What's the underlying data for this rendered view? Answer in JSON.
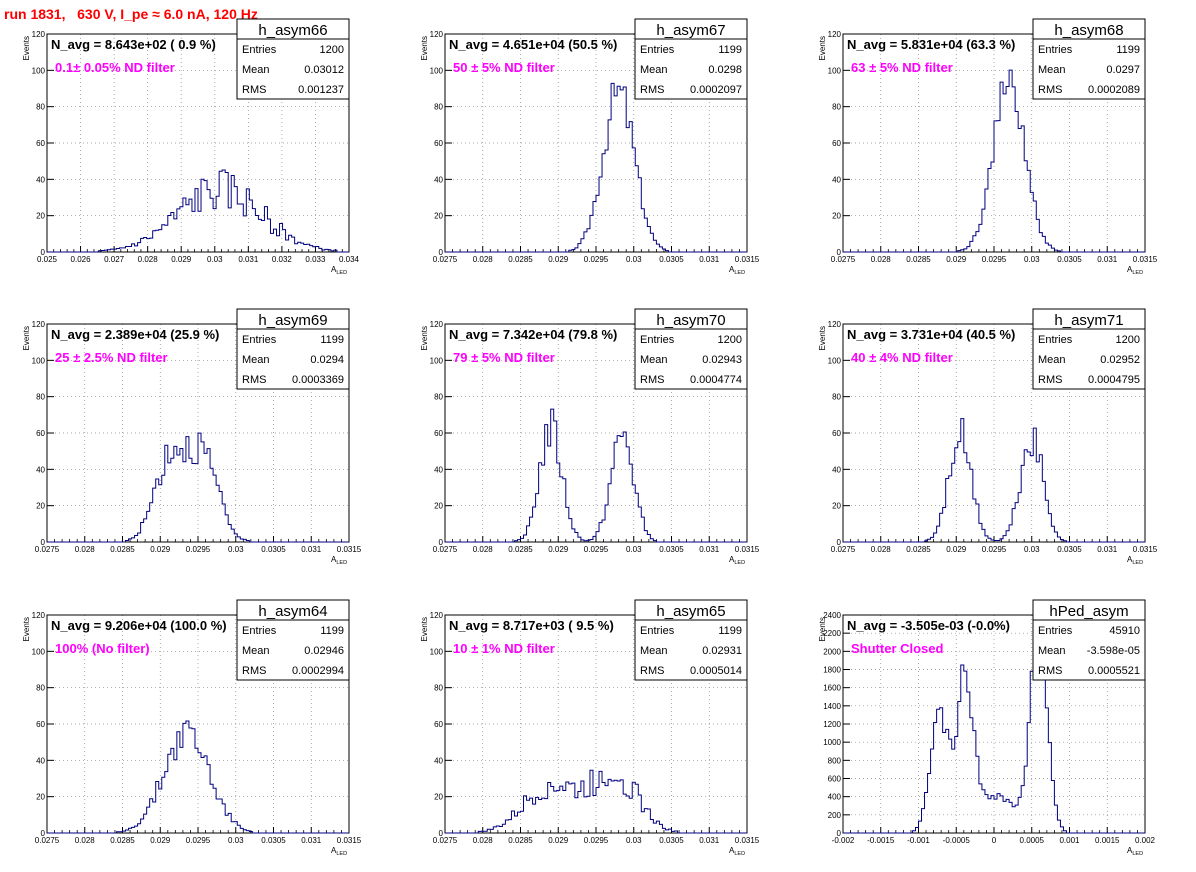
{
  "header": {
    "run_title": "run 1831,   630 V, I_pe ≈ 6.0 nA, 120 Hz"
  },
  "stat_labels": {
    "entries": "Entries",
    "mean": "Mean",
    "rms": "RMS"
  },
  "colors": {
    "histogram": "#000080",
    "annotation": "#ff00ff",
    "title": "#ff0000",
    "grid": "#888888"
  },
  "chart_data": [
    {
      "type": "histogram",
      "name": "h_asym66",
      "navg": "N_avg = 8.643e+02 ( 0.9 %)",
      "annotation": "0.1± 0.05% ND filter",
      "stats": {
        "entries": "1200",
        "mean": "0.03012",
        "rms": "0.001237"
      },
      "xlabel": "A",
      "xlabel_sub": "LED",
      "ylabel": "Events",
      "xlim": [
        0.025,
        0.034
      ],
      "ylim": [
        0,
        120
      ],
      "xticks": [
        0.025,
        0.026,
        0.027,
        0.028,
        0.029,
        0.03,
        0.031,
        0.032,
        0.033,
        0.034
      ],
      "xtick_labels": [
        "0.025",
        "0.026",
        "0.027",
        "0.028",
        "0.029",
        "0.03",
        "0.031",
        "0.032",
        "0.033",
        "0.034"
      ],
      "yticks": [
        0,
        20,
        40,
        60,
        80,
        100,
        120
      ],
      "ytick_labels": [
        "0",
        "20",
        "40",
        "60",
        "80",
        "100",
        "120"
      ],
      "peaks": [
        {
          "mu": 0.03015,
          "sigma": 0.00125,
          "h": 34
        }
      ],
      "noise_seed": 66,
      "noise": 0.35
    },
    {
      "type": "histogram",
      "name": "h_asym67",
      "navg": "N_avg = 4.651e+04 (50.5 %)",
      "annotation": "50 ± 5% ND filter",
      "stats": {
        "entries": "1199",
        "mean": "0.0298",
        "rms": "0.0002097"
      },
      "xlabel": "A",
      "xlabel_sub": "LED",
      "ylabel": "Events",
      "xlim": [
        0.0275,
        0.0315
      ],
      "ylim": [
        0,
        120
      ],
      "xticks": [
        0.0275,
        0.028,
        0.0285,
        0.029,
        0.0295,
        0.03,
        0.0305,
        0.031,
        0.0315
      ],
      "xtick_labels": [
        "0.0275",
        "0.028",
        "0.0285",
        "0.029",
        "0.0295",
        "0.03",
        "0.0305",
        "0.031",
        "0.0315"
      ],
      "yticks": [
        0,
        20,
        40,
        60,
        80,
        100,
        120
      ],
      "ytick_labels": [
        "0",
        "20",
        "40",
        "60",
        "80",
        "100",
        "120"
      ],
      "peaks": [
        {
          "mu": 0.0298,
          "sigma": 0.00021,
          "h": 88
        }
      ],
      "noise_seed": 67,
      "noise": 0.15
    },
    {
      "type": "histogram",
      "name": "h_asym68",
      "navg": "N_avg = 5.831e+04 (63.3 %)",
      "annotation": "63 ± 5% ND filter",
      "stats": {
        "entries": "1199",
        "mean": "0.0297",
        "rms": "0.0002089"
      },
      "xlabel": "A",
      "xlabel_sub": "LED",
      "ylabel": "Events",
      "xlim": [
        0.0275,
        0.0315
      ],
      "ylim": [
        0,
        120
      ],
      "xticks": [
        0.0275,
        0.028,
        0.0285,
        0.029,
        0.0295,
        0.03,
        0.0305,
        0.031,
        0.0315
      ],
      "xtick_labels": [
        "0.0275",
        "0.028",
        "0.0285",
        "0.029",
        "0.0295",
        "0.03",
        "0.0305",
        "0.031",
        "0.0315"
      ],
      "yticks": [
        0,
        20,
        40,
        60,
        80,
        100,
        120
      ],
      "ytick_labels": [
        "0",
        "20",
        "40",
        "60",
        "80",
        "100",
        "120"
      ],
      "peaks": [
        {
          "mu": 0.0297,
          "sigma": 0.00021,
          "h": 92
        }
      ],
      "noise_seed": 68,
      "noise": 0.15
    },
    {
      "type": "histogram",
      "name": "h_asym69",
      "navg": "N_avg = 2.389e+04 (25.9 %)",
      "annotation": "25 ± 2.5% ND filter",
      "stats": {
        "entries": "1199",
        "mean": "0.0294",
        "rms": "0.0003369"
      },
      "xlabel": "A",
      "xlabel_sub": "LED",
      "ylabel": "Events",
      "xlim": [
        0.0275,
        0.0315
      ],
      "ylim": [
        0,
        120
      ],
      "xticks": [
        0.0275,
        0.028,
        0.0285,
        0.029,
        0.0295,
        0.03,
        0.0305,
        0.031,
        0.0315
      ],
      "xtick_labels": [
        "0.0275",
        "0.028",
        "0.0285",
        "0.029",
        "0.0295",
        "0.03",
        "0.0305",
        "0.031",
        "0.0315"
      ],
      "yticks": [
        0,
        20,
        40,
        60,
        80,
        100,
        120
      ],
      "ytick_labels": [
        "0",
        "20",
        "40",
        "60",
        "80",
        "100",
        "120"
      ],
      "peaks": [
        {
          "mu": 0.02912,
          "sigma": 0.0002,
          "h": 45
        },
        {
          "mu": 0.02955,
          "sigma": 0.00021,
          "h": 47
        }
      ],
      "noise_seed": 69,
      "noise": 0.2
    },
    {
      "type": "histogram",
      "name": "h_asym70",
      "navg": "N_avg = 7.342e+04 (79.8 %)",
      "annotation": "79 ± 5% ND filter",
      "stats": {
        "entries": "1200",
        "mean": "0.02943",
        "rms": "0.0004774"
      },
      "xlabel": "A",
      "xlabel_sub": "LED",
      "ylabel": "Events",
      "xlim": [
        0.0275,
        0.0315
      ],
      "ylim": [
        0,
        120
      ],
      "xticks": [
        0.0275,
        0.028,
        0.0285,
        0.029,
        0.0295,
        0.03,
        0.0305,
        0.031,
        0.0315
      ],
      "xtick_labels": [
        "0.0275",
        "0.028",
        "0.0285",
        "0.029",
        "0.0295",
        "0.03",
        "0.0305",
        "0.031",
        "0.0315"
      ],
      "yticks": [
        0,
        20,
        40,
        60,
        80,
        100,
        120
      ],
      "ytick_labels": [
        "0",
        "20",
        "40",
        "60",
        "80",
        "100",
        "120"
      ],
      "peaks": [
        {
          "mu": 0.0289,
          "sigma": 0.00015,
          "h": 62
        },
        {
          "mu": 0.02985,
          "sigma": 0.00015,
          "h": 58
        }
      ],
      "noise_seed": 70,
      "noise": 0.2
    },
    {
      "type": "histogram",
      "name": "h_asym71",
      "navg": "N_avg = 3.731e+04 (40.5 %)",
      "annotation": "40 ± 4% ND filter",
      "stats": {
        "entries": "1200",
        "mean": "0.02952",
        "rms": "0.0004795"
      },
      "xlabel": "A",
      "xlabel_sub": "LED",
      "ylabel": "Events",
      "xlim": [
        0.0275,
        0.0315
      ],
      "ylim": [
        0,
        120
      ],
      "xticks": [
        0.0275,
        0.028,
        0.0285,
        0.029,
        0.0295,
        0.03,
        0.0305,
        0.031,
        0.0315
      ],
      "xtick_labels": [
        "0.0275",
        "0.028",
        "0.0285",
        "0.029",
        "0.0295",
        "0.03",
        "0.0305",
        "0.031",
        "0.0315"
      ],
      "yticks": [
        0,
        20,
        40,
        60,
        80,
        100,
        120
      ],
      "ytick_labels": [
        "0",
        "20",
        "40",
        "60",
        "80",
        "100",
        "120"
      ],
      "peaks": [
        {
          "mu": 0.02905,
          "sigma": 0.00015,
          "h": 58
        },
        {
          "mu": 0.03,
          "sigma": 0.00015,
          "h": 56
        }
      ],
      "noise_seed": 71,
      "noise": 0.2
    },
    {
      "type": "histogram",
      "name": "h_asym64",
      "navg": "N_avg = 9.206e+04 (100.0 %)",
      "annotation": "100% (No filter)",
      "stats": {
        "entries": "1199",
        "mean": "0.02946",
        "rms": "0.0002994"
      },
      "xlabel": "A",
      "xlabel_sub": "LED",
      "ylabel": "Events",
      "xlim": [
        0.0275,
        0.0315
      ],
      "ylim": [
        0,
        120
      ],
      "xticks": [
        0.0275,
        0.028,
        0.0285,
        0.029,
        0.0295,
        0.03,
        0.0305,
        0.031,
        0.0315
      ],
      "xtick_labels": [
        "0.0275",
        "0.028",
        "0.0285",
        "0.029",
        "0.0295",
        "0.03",
        "0.0305",
        "0.031",
        "0.0315"
      ],
      "yticks": [
        0,
        20,
        40,
        60,
        80,
        100,
        120
      ],
      "ytick_labels": [
        "0",
        "20",
        "40",
        "60",
        "80",
        "100",
        "120"
      ],
      "peaks": [
        {
          "mu": 0.02935,
          "sigma": 0.0003,
          "h": 56
        }
      ],
      "noise_seed": 64,
      "noise": 0.2
    },
    {
      "type": "histogram",
      "name": "h_asym65",
      "navg": "N_avg = 8.717e+03 ( 9.5 %)",
      "annotation": "10 ± 1% ND filter",
      "stats": {
        "entries": "1199",
        "mean": "0.02931",
        "rms": "0.0005014"
      },
      "xlabel": "A",
      "xlabel_sub": "LED",
      "ylabel": "Events",
      "xlim": [
        0.0275,
        0.0315
      ],
      "ylim": [
        0,
        120
      ],
      "xticks": [
        0.0275,
        0.028,
        0.0285,
        0.029,
        0.0295,
        0.03,
        0.0305,
        0.031,
        0.0315
      ],
      "xtick_labels": [
        "0.0275",
        "0.028",
        "0.0285",
        "0.029",
        "0.0295",
        "0.03",
        "0.0305",
        "0.031",
        "0.0315"
      ],
      "yticks": [
        0,
        20,
        40,
        60,
        80,
        100,
        120
      ],
      "ytick_labels": [
        "0",
        "20",
        "40",
        "60",
        "80",
        "100",
        "120"
      ],
      "peaks": [
        {
          "mu": 0.0289,
          "sigma": 0.00035,
          "h": 26
        },
        {
          "mu": 0.02975,
          "sigma": 0.0003,
          "h": 33
        }
      ],
      "noise_seed": 65,
      "noise": 0.3
    },
    {
      "type": "histogram",
      "name": "hPed_asym",
      "navg": "N_avg = -3.505e-03 (-0.0%)",
      "annotation": "Shutter Closed",
      "stats": {
        "entries": "45910",
        "mean": "-3.598e-05",
        "rms": "0.0005521"
      },
      "xlabel": "A",
      "xlabel_sub": "LED",
      "ylabel": "Events",
      "xlim": [
        -0.002,
        0.002
      ],
      "ylim": [
        0,
        2400
      ],
      "xticks": [
        -0.002,
        -0.0015,
        -0.001,
        -0.0005,
        0,
        0.0005,
        0.001,
        0.0015,
        0.002
      ],
      "xtick_labels": [
        "-0.002",
        "-0.0015",
        "-0.001",
        "-0.0005",
        "0",
        "0.0005",
        "0.001",
        "0.0015",
        "0.002"
      ],
      "yticks": [
        0,
        200,
        400,
        600,
        800,
        1000,
        1200,
        1400,
        1600,
        1800,
        2000,
        2200,
        2400
      ],
      "ytick_labels": [
        "0",
        "200",
        "400",
        "600",
        "800",
        "1000",
        "1200",
        "1400",
        "1600",
        "1800",
        "2000",
        "2200",
        "2400"
      ],
      "peaks": [
        {
          "mu": -0.00072,
          "sigma": 0.00012,
          "h": 1300
        },
        {
          "mu": -0.00038,
          "sigma": 0.0001,
          "h": 1600
        },
        {
          "mu": 0,
          "sigma": 0.0003,
          "h": 420
        },
        {
          "mu": 0.0006,
          "sigma": 0.00011,
          "h": 2300
        }
      ],
      "noise_seed": 99,
      "noise": 0.12
    }
  ]
}
